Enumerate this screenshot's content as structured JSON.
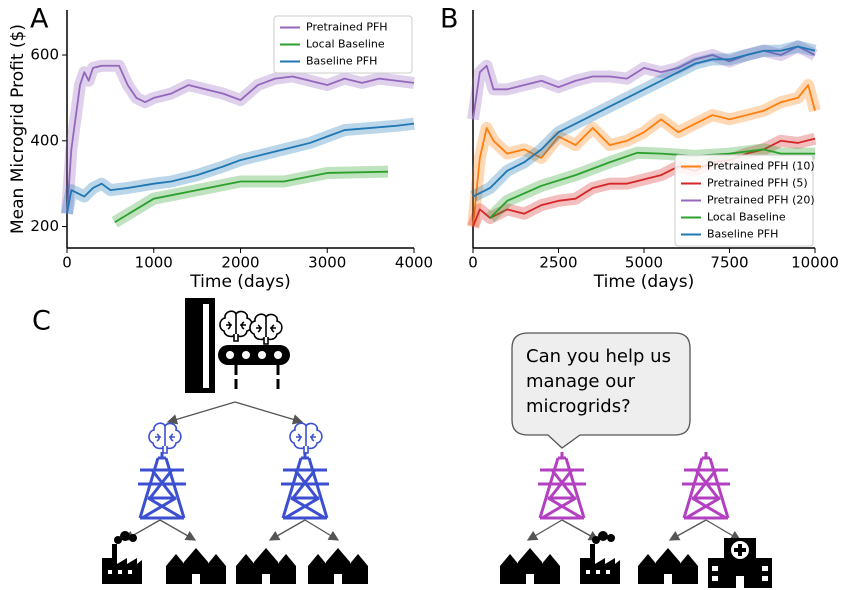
{
  "panels": [
    "A",
    "B",
    "C"
  ],
  "chart_data": [
    {
      "type": "line",
      "xlabel": "Time (days)",
      "ylabel": "Mean Microgrid Profit ($)",
      "xlim": [
        0,
        4000
      ],
      "xticks": [
        0,
        1000,
        2000,
        3000,
        4000
      ],
      "ylim": [
        150,
        705
      ],
      "yticks": [
        200,
        400,
        600
      ],
      "legend": "upper right",
      "series": [
        {
          "name": "Pretrained PFH",
          "color": "#9467bd",
          "x": [
            0,
            50,
            150,
            200,
            250,
            300,
            400,
            500,
            600,
            700,
            800,
            900,
            1000,
            1200,
            1400,
            1600,
            1800,
            2000,
            2200,
            2400,
            2600,
            2800,
            3000,
            3200,
            3400,
            3600,
            3800,
            4000
          ],
          "values": [
            230,
            380,
            530,
            560,
            540,
            570,
            575,
            575,
            575,
            530,
            500,
            490,
            500,
            510,
            530,
            520,
            510,
            495,
            530,
            545,
            550,
            540,
            530,
            545,
            535,
            545,
            540,
            535
          ]
        },
        {
          "name": "Local Baseline",
          "color": "#2ca02c",
          "x": [
            550,
            1000,
            1500,
            2000,
            2500,
            3000,
            3700
          ],
          "values": [
            210,
            265,
            285,
            305,
            305,
            325,
            328
          ]
        },
        {
          "name": "Baseline PFH",
          "color": "#1f77b4",
          "x": [
            0,
            50,
            200,
            300,
            400,
            500,
            700,
            1000,
            1200,
            1500,
            1800,
            2000,
            2300,
            2600,
            2800,
            3000,
            3200,
            3500,
            3800,
            4000
          ],
          "values": [
            230,
            285,
            270,
            290,
            300,
            285,
            290,
            300,
            305,
            320,
            340,
            355,
            370,
            385,
            395,
            410,
            425,
            430,
            435,
            440
          ]
        }
      ]
    },
    {
      "type": "line",
      "xlabel": "Time (days)",
      "xlim": [
        0,
        10000
      ],
      "xticks": [
        0,
        2500,
        5000,
        7500,
        10000
      ],
      "ylim": [
        150,
        705
      ],
      "legend": "lower right",
      "series": [
        {
          "name": "Pretrained PFH (10)",
          "color": "#ff7f0e",
          "x": [
            0,
            200,
            400,
            600,
            1000,
            1500,
            2000,
            2500,
            3000,
            3500,
            4000,
            4500,
            5000,
            5500,
            6000,
            6500,
            7000,
            7500,
            8000,
            8500,
            9000,
            9500,
            9800,
            10000
          ],
          "values": [
            200,
            360,
            430,
            400,
            370,
            380,
            360,
            410,
            390,
            430,
            390,
            400,
            420,
            450,
            420,
            440,
            460,
            450,
            460,
            470,
            490,
            500,
            530,
            470
          ]
        },
        {
          "name": "Pretrained PFH (5)",
          "color": "#d62728",
          "x": [
            0,
            200,
            500,
            1000,
            1500,
            2000,
            2500,
            3000,
            3500,
            4000,
            4500,
            5000,
            5500,
            6000,
            6500,
            7000,
            7500,
            8000,
            8500,
            9000,
            9500,
            10000
          ],
          "values": [
            200,
            240,
            220,
            240,
            230,
            250,
            260,
            265,
            290,
            300,
            300,
            310,
            320,
            340,
            330,
            350,
            355,
            370,
            380,
            400,
            395,
            405
          ]
        },
        {
          "name": "Pretrained PFH (20)",
          "color": "#9467bd",
          "x": [
            0,
            200,
            400,
            600,
            1000,
            1500,
            2000,
            2500,
            3000,
            3500,
            4000,
            4500,
            5000,
            5500,
            6000,
            6500,
            7000,
            7500,
            8000,
            8500,
            9000,
            9500,
            10000
          ],
          "values": [
            450,
            560,
            575,
            520,
            520,
            530,
            540,
            525,
            540,
            550,
            550,
            545,
            570,
            560,
            570,
            590,
            600,
            585,
            600,
            610,
            600,
            620,
            600
          ]
        },
        {
          "name": "Local Baseline",
          "color": "#2ca02c",
          "x": [
            500,
            1000,
            2000,
            3000,
            4000,
            4800,
            5500,
            6500,
            7500,
            8500,
            9000,
            10000
          ],
          "values": [
            220,
            260,
            295,
            320,
            350,
            372,
            370,
            365,
            370,
            380,
            370,
            370
          ]
        },
        {
          "name": "Baseline PFH",
          "color": "#1f77b4",
          "x": [
            0,
            500,
            1000,
            1500,
            2000,
            2500,
            3000,
            3500,
            4000,
            4500,
            5000,
            5500,
            6000,
            6500,
            7000,
            7500,
            8000,
            8500,
            9000,
            9500,
            10000
          ],
          "values": [
            270,
            290,
            330,
            350,
            380,
            420,
            440,
            460,
            480,
            500,
            520,
            540,
            560,
            580,
            590,
            590,
            600,
            610,
            610,
            620,
            610
          ]
        }
      ]
    }
  ],
  "diagram": {
    "bubble": [
      "Can you help us",
      "manage our",
      "microgrids?"
    ]
  }
}
